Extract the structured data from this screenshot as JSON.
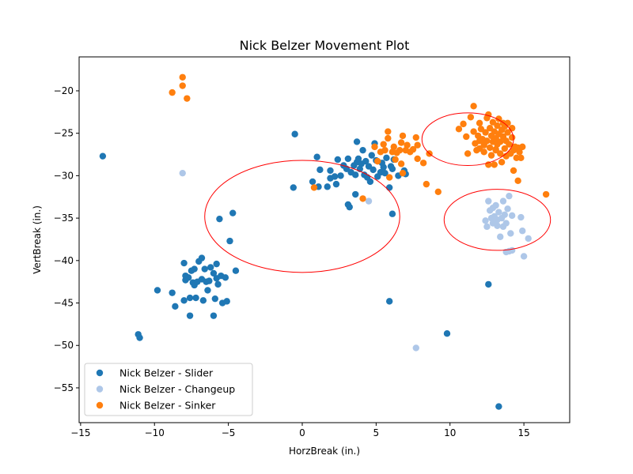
{
  "chart_data": {
    "type": "scatter",
    "title": "Nick Belzer Movement Plot",
    "xlabel": "HorzBreak (in.)",
    "ylabel": "VertBreak (in.)",
    "xlim": [
      -15.1,
      18.1
    ],
    "ylim": [
      -59.1,
      -16.0
    ],
    "xticks": [
      -15,
      -10,
      -5,
      0,
      5,
      10,
      15
    ],
    "yticks": [
      -55,
      -50,
      -45,
      -40,
      -35,
      -30,
      -25,
      -20
    ],
    "tick_labels": {
      "x": [
        "−15",
        "−10",
        "−5",
        "0",
        "5",
        "10",
        "15"
      ],
      "y": [
        "−55",
        "−50",
        "−45",
        "−40",
        "−35",
        "−30",
        "−25",
        "−20"
      ]
    },
    "grid": false,
    "legend": "lower-left",
    "series": [
      {
        "name": "Nick Belzer - Slider",
        "color": "#1f77b4",
        "points": [
          [
            -13.5,
            -27.7
          ],
          [
            -11.1,
            -48.7
          ],
          [
            -11.0,
            -49.1
          ],
          [
            -9.8,
            -43.5
          ],
          [
            -8.8,
            -43.8
          ],
          [
            -8.6,
            -45.4
          ],
          [
            -8.0,
            -44.7
          ],
          [
            -8.0,
            -40.3
          ],
          [
            -7.9,
            -42.3
          ],
          [
            -7.9,
            -41.8
          ],
          [
            -7.7,
            -42.0
          ],
          [
            -7.6,
            -44.4
          ],
          [
            -7.6,
            -46.5
          ],
          [
            -7.5,
            -41.2
          ],
          [
            -7.4,
            -42.6
          ],
          [
            -7.3,
            -42.9
          ],
          [
            -7.3,
            -41.0
          ],
          [
            -7.2,
            -44.4
          ],
          [
            -7.1,
            -42.5
          ],
          [
            -7.0,
            -40.1
          ],
          [
            -6.8,
            -39.7
          ],
          [
            -6.8,
            -42.2
          ],
          [
            -6.7,
            -44.7
          ],
          [
            -6.6,
            -41.0
          ],
          [
            -6.5,
            -42.5
          ],
          [
            -6.4,
            -43.5
          ],
          [
            -6.3,
            -42.4
          ],
          [
            -6.2,
            -40.8
          ],
          [
            -6.0,
            -41.5
          ],
          [
            -6.0,
            -46.5
          ],
          [
            -5.9,
            -44.5
          ],
          [
            -5.8,
            -40.4
          ],
          [
            -5.8,
            -42.1
          ],
          [
            -5.7,
            -42.8
          ],
          [
            -5.5,
            -41.8
          ],
          [
            -5.4,
            -45.0
          ],
          [
            -5.2,
            -42.0
          ],
          [
            -5.1,
            -44.8
          ],
          [
            -5.6,
            -35.1
          ],
          [
            -4.9,
            -37.7
          ],
          [
            -4.7,
            -34.4
          ],
          [
            -4.5,
            -41.2
          ],
          [
            -0.5,
            -25.1
          ],
          [
            -0.6,
            -31.4
          ],
          [
            0.7,
            -30.7
          ],
          [
            1.0,
            -27.8
          ],
          [
            1.1,
            -31.3
          ],
          [
            1.2,
            -29.3
          ],
          [
            1.7,
            -31.3
          ],
          [
            1.9,
            -30.3
          ],
          [
            1.9,
            -29.4
          ],
          [
            2.2,
            -30.1
          ],
          [
            2.3,
            -31.0
          ],
          [
            2.4,
            -28.1
          ],
          [
            2.6,
            -30.0
          ],
          [
            2.8,
            -28.8
          ],
          [
            3.0,
            -29.2
          ],
          [
            3.1,
            -28.0
          ],
          [
            3.1,
            -33.4
          ],
          [
            3.2,
            -33.7
          ],
          [
            3.3,
            -29.6
          ],
          [
            3.5,
            -28.8
          ],
          [
            3.6,
            -29.9
          ],
          [
            3.6,
            -32.2
          ],
          [
            3.7,
            -26.0
          ],
          [
            3.7,
            -28.4
          ],
          [
            3.8,
            -28.0
          ],
          [
            3.9,
            -29.2
          ],
          [
            4.0,
            -28.6
          ],
          [
            4.1,
            -27.0
          ],
          [
            4.2,
            -29.9
          ],
          [
            4.3,
            -28.3
          ],
          [
            4.4,
            -30.2
          ],
          [
            4.5,
            -28.9
          ],
          [
            4.6,
            -30.7
          ],
          [
            4.7,
            -27.6
          ],
          [
            4.8,
            -29.3
          ],
          [
            4.9,
            -26.2
          ],
          [
            5.0,
            -28.2
          ],
          [
            5.1,
            -30.1
          ],
          [
            5.3,
            -29.6
          ],
          [
            5.4,
            -28.5
          ],
          [
            5.5,
            -29.0
          ],
          [
            5.6,
            -29.7
          ],
          [
            5.7,
            -27.9
          ],
          [
            5.9,
            -31.4
          ],
          [
            6.0,
            -28.9
          ],
          [
            6.1,
            -29.2
          ],
          [
            6.2,
            -28.1
          ],
          [
            6.5,
            -30.0
          ],
          [
            6.9,
            -29.4
          ],
          [
            7.0,
            -29.8
          ],
          [
            6.1,
            -34.5
          ],
          [
            5.9,
            -44.8
          ],
          [
            9.8,
            -48.6
          ],
          [
            12.6,
            -42.8
          ],
          [
            13.3,
            -57.2
          ]
        ]
      },
      {
        "name": "Nick Belzer - Changeup",
        "color": "#aec7e8",
        "points": [
          [
            -8.1,
            -29.7
          ],
          [
            4.5,
            -33.0
          ],
          [
            7.7,
            -50.3
          ],
          [
            12.4,
            -35.3
          ],
          [
            12.5,
            -36.0
          ],
          [
            12.6,
            -33.0
          ],
          [
            12.7,
            -34.1
          ],
          [
            12.8,
            -35.0
          ],
          [
            12.9,
            -35.6
          ],
          [
            13.0,
            -34.8
          ],
          [
            13.1,
            -33.5
          ],
          [
            13.2,
            -35.9
          ],
          [
            13.3,
            -34.3
          ],
          [
            13.4,
            -37.2
          ],
          [
            13.5,
            -35.0
          ],
          [
            13.6,
            -33.0
          ],
          [
            13.7,
            -34.6
          ],
          [
            13.8,
            -35.6
          ],
          [
            13.9,
            -33.9
          ],
          [
            14.0,
            -32.4
          ],
          [
            14.1,
            -36.8
          ],
          [
            14.2,
            -34.7
          ],
          [
            14.0,
            -38.9
          ],
          [
            13.8,
            -39.0
          ],
          [
            14.2,
            -38.8
          ],
          [
            14.8,
            -34.9
          ],
          [
            14.9,
            -36.5
          ],
          [
            15.0,
            -39.5
          ],
          [
            15.3,
            -37.4
          ],
          [
            13.6,
            -36.0
          ],
          [
            13.2,
            -35.2
          ],
          [
            12.9,
            -33.8
          ]
        ]
      },
      {
        "name": "Nick Belzer - Sinker",
        "color": "#ff7f0e",
        "points": [
          [
            -8.8,
            -20.2
          ],
          [
            -8.1,
            -18.4
          ],
          [
            -8.1,
            -19.4
          ],
          [
            -7.8,
            -20.9
          ],
          [
            0.8,
            -31.4
          ],
          [
            4.1,
            -32.7
          ],
          [
            4.9,
            -26.6
          ],
          [
            5.1,
            -28.3
          ],
          [
            5.3,
            -27.2
          ],
          [
            5.5,
            -26.3
          ],
          [
            5.6,
            -27.0
          ],
          [
            5.8,
            -24.8
          ],
          [
            5.8,
            -25.6
          ],
          [
            5.9,
            -30.2
          ],
          [
            6.1,
            -27.2
          ],
          [
            6.2,
            -26.6
          ],
          [
            6.3,
            -28.1
          ],
          [
            6.4,
            -27.3
          ],
          [
            6.6,
            -27.0
          ],
          [
            6.7,
            -26.1
          ],
          [
            6.7,
            -28.6
          ],
          [
            6.8,
            -25.3
          ],
          [
            6.8,
            -29.7
          ],
          [
            7.0,
            -27.0
          ],
          [
            7.1,
            -26.4
          ],
          [
            7.3,
            -27.2
          ],
          [
            7.5,
            -26.9
          ],
          [
            7.7,
            -25.5
          ],
          [
            7.8,
            -28.0
          ],
          [
            7.8,
            -26.4
          ],
          [
            8.2,
            -28.5
          ],
          [
            8.4,
            -31.0
          ],
          [
            8.6,
            -27.4
          ],
          [
            9.2,
            -31.9
          ],
          [
            10.6,
            -24.5
          ],
          [
            10.9,
            -23.9
          ],
          [
            11.1,
            -25.4
          ],
          [
            11.2,
            -27.4
          ],
          [
            11.4,
            -23.1
          ],
          [
            11.6,
            -21.8
          ],
          [
            11.6,
            -24.8
          ],
          [
            11.7,
            -26.2
          ],
          [
            11.8,
            -27.0
          ],
          [
            11.9,
            -25.3
          ],
          [
            12.0,
            -23.8
          ],
          [
            12.0,
            -26.8
          ],
          [
            12.1,
            -24.5
          ],
          [
            12.2,
            -25.7
          ],
          [
            12.3,
            -26.4
          ],
          [
            12.3,
            -27.2
          ],
          [
            12.4,
            -24.9
          ],
          [
            12.5,
            -23.2
          ],
          [
            12.5,
            -25.9
          ],
          [
            12.6,
            -22.8
          ],
          [
            12.6,
            -28.7
          ],
          [
            12.7,
            -24.4
          ],
          [
            12.7,
            -26.7
          ],
          [
            12.8,
            -25.3
          ],
          [
            12.8,
            -27.6
          ],
          [
            12.9,
            -23.7
          ],
          [
            12.9,
            -26.0
          ],
          [
            13.0,
            -24.8
          ],
          [
            13.0,
            -28.7
          ],
          [
            13.1,
            -25.6
          ],
          [
            13.1,
            -27.0
          ],
          [
            13.2,
            -24.1
          ],
          [
            13.2,
            -26.3
          ],
          [
            13.3,
            -23.3
          ],
          [
            13.3,
            -25.1
          ],
          [
            13.4,
            -27.4
          ],
          [
            13.4,
            -26.0
          ],
          [
            13.5,
            -24.6
          ],
          [
            13.5,
            -28.4
          ],
          [
            13.6,
            -25.4
          ],
          [
            13.6,
            -23.8
          ],
          [
            13.7,
            -26.8
          ],
          [
            13.7,
            -24.2
          ],
          [
            13.8,
            -25.9
          ],
          [
            13.8,
            -27.7
          ],
          [
            13.9,
            -24.9
          ],
          [
            13.9,
            -23.8
          ],
          [
            14.0,
            -26.3
          ],
          [
            14.1,
            -27.4
          ],
          [
            14.2,
            -25.5
          ],
          [
            14.2,
            -24.4
          ],
          [
            14.3,
            -27.0
          ],
          [
            14.3,
            -29.4
          ],
          [
            14.4,
            -26.6
          ],
          [
            14.5,
            -27.9
          ],
          [
            14.6,
            -26.7
          ],
          [
            14.6,
            -30.6
          ],
          [
            14.7,
            -27.2
          ],
          [
            14.8,
            -27.9
          ],
          [
            14.9,
            -26.6
          ],
          [
            16.5,
            -32.2
          ],
          [
            12.0,
            -25.9
          ],
          [
            12.4,
            -26.0
          ],
          [
            13.1,
            -26.9
          ]
        ]
      }
    ],
    "ellipses": [
      {
        "color": "#ff0000",
        "center": [
          0.0,
          -34.8
        ],
        "radius_x": 6.6,
        "radius_y": 6.6
      },
      {
        "color": "#ff0000",
        "center": [
          13.2,
          -35.2
        ],
        "radius_x": 3.6,
        "radius_y": 3.6
      },
      {
        "color": "#ff0000",
        "center": [
          11.2,
          -25.7
        ],
        "radius_x": 3.1,
        "radius_y": 3.1
      }
    ]
  }
}
